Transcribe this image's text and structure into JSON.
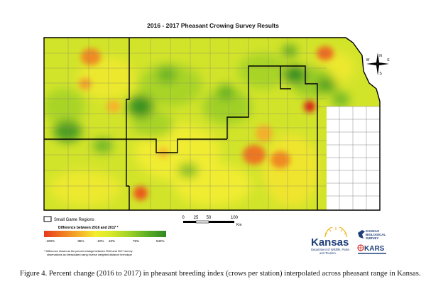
{
  "title": "2016 - 2017 Pheasant Crowing Survey Results",
  "legend": {
    "regions_label": "Small Game Regions",
    "difference_title": "Difference between 2016 and 2017 *",
    "tick_labels": [
      "-100%",
      "-35%",
      "-10%",
      "10%",
      "75%",
      "542%"
    ],
    "gradient_colors": [
      "#e8381c",
      "#f07a20",
      "#f5b52c",
      "#f3ee2e",
      "#d8e92a",
      "#9ed126",
      "#5aae24",
      "#2f8a22"
    ],
    "footnote_lines": [
      "* Difference shown as the percent change between 2016 and 2017 survey",
      "observations as interpolated using inverse weighted distance technique"
    ]
  },
  "scale_bar": {
    "tick_labels": [
      "0",
      "25",
      "50",
      "100"
    ],
    "unit": "Km"
  },
  "compass": {
    "n": "N",
    "s": "S",
    "e": "E",
    "w": "W"
  },
  "logos": {
    "kansas_word": "Kansas",
    "kansas_sub1": "Department of Wildlife, Parks",
    "kansas_sub2": "and Tourism",
    "kbs_line1": "KANSAS",
    "kbs_line2": "BIOLOGICAL",
    "kbs_line3": "SURVEY",
    "kars": "KARS"
  },
  "caption": "Figure 4. Percent change (2016 to 2017) in pheasant breeding index (crows per station) interpolated across pheasant range in Kansas.",
  "colors": {
    "base_yellow_green": "#d4e52a",
    "yellow": "#f0ec30",
    "light_green": "#a8d428",
    "dark_green": "#2f8a22",
    "orange": "#f08a22",
    "red": "#e02a1a",
    "county_line": "#8a8a6a",
    "region_line": "#000000"
  }
}
